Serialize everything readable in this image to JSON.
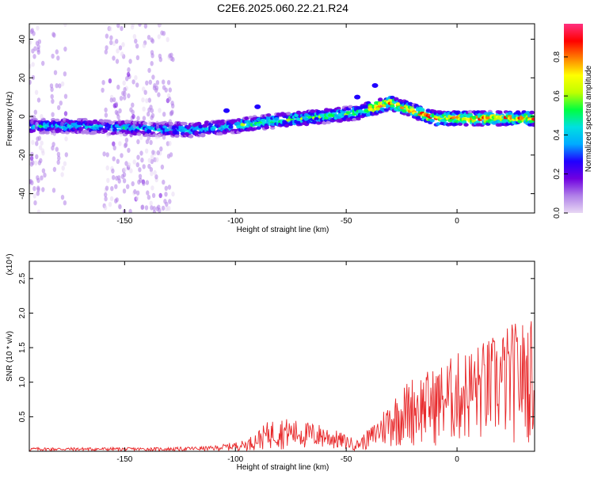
{
  "title": "C2E6.2025.060.22.21.R24",
  "chart_data": [
    {
      "type": "heatmap",
      "xlabel": "Height of straight line (km)",
      "ylabel": "Frequency (Hz)",
      "xlim": [
        -193,
        35
      ],
      "ylim": [
        -50,
        48
      ],
      "x_ticks": [
        -150,
        -100,
        -50,
        0
      ],
      "y_ticks": [
        40,
        20,
        0,
        -20,
        -40
      ],
      "colorbar": {
        "label": "Normalized spectral amplitude",
        "range": [
          0,
          0.97
        ],
        "ticks": [
          0.0,
          0.2,
          0.4,
          0.6,
          0.8
        ],
        "colors": [
          "#e8d8f4",
          "#b080e8",
          "#7000e0",
          "#2000ff",
          "#00aaff",
          "#00e0e0",
          "#00ff40",
          "#c0ff00",
          "#ffff00",
          "#ff8000",
          "#ff0000",
          "#ff3080"
        ]
      },
      "ridge": [
        {
          "x": -193,
          "y": -5
        },
        {
          "x": -170,
          "y": -5
        },
        {
          "x": -150,
          "y": -6
        },
        {
          "x": -120,
          "y": -7
        },
        {
          "x": -100,
          "y": -5
        },
        {
          "x": -80,
          "y": -2
        },
        {
          "x": -60,
          "y": 0
        },
        {
          "x": -45,
          "y": 2
        },
        {
          "x": -30,
          "y": 7
        },
        {
          "x": -20,
          "y": 3
        },
        {
          "x": -10,
          "y": -1
        },
        {
          "x": 10,
          "y": -1
        },
        {
          "x": 35,
          "y": -1
        }
      ]
    },
    {
      "type": "line",
      "xlabel": "Height of straight line (km)",
      "ylabel": "SNR (10 * v/v)",
      "y_multiplier": "(x10⁴)",
      "xlim": [
        -193,
        35
      ],
      "ylim": [
        0,
        2.75
      ],
      "x_ticks": [
        -150,
        -100,
        -50,
        0
      ],
      "y_ticks": [
        0.5,
        1.0,
        1.5,
        2.0,
        2.5
      ],
      "color": "#e8292b",
      "envelope": [
        {
          "x": -193,
          "y": 0.05
        },
        {
          "x": -130,
          "y": 0.05
        },
        {
          "x": -110,
          "y": 0.07
        },
        {
          "x": -95,
          "y": 0.15
        },
        {
          "x": -85,
          "y": 0.4
        },
        {
          "x": -80,
          "y": 0.45
        },
        {
          "x": -60,
          "y": 0.35
        },
        {
          "x": -45,
          "y": 0.15
        },
        {
          "x": -38,
          "y": 0.35
        },
        {
          "x": -30,
          "y": 0.7
        },
        {
          "x": -20,
          "y": 1.0
        },
        {
          "x": -10,
          "y": 1.1
        },
        {
          "x": 0,
          "y": 1.3
        },
        {
          "x": 15,
          "y": 1.5
        },
        {
          "x": 25,
          "y": 1.7
        },
        {
          "x": 35,
          "y": 1.75
        }
      ]
    }
  ]
}
